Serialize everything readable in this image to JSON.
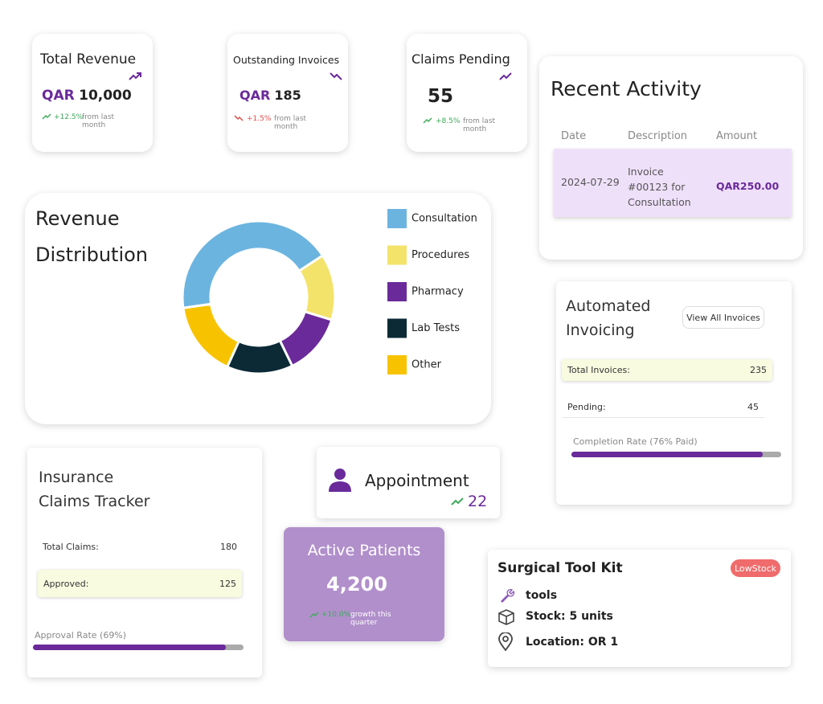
{
  "total_revenue": {
    "title": "Total Revenue",
    "currency": "QAR",
    "amount": "10,000",
    "change": "+12.5%",
    "change_note": "from last month"
  },
  "outstanding_invoices": {
    "title": "Outstanding Invoices",
    "currency": "QAR",
    "amount": "185",
    "change": "+1.5%",
    "change_note": "from last month"
  },
  "claims_pending": {
    "title": "Claims Pending",
    "value": "55",
    "change": "+8.5%",
    "change_note": "from last month"
  },
  "recent_activity": {
    "title": "Recent Activity",
    "columns": [
      "Date",
      "Description",
      "Amount"
    ],
    "rows": [
      [
        "2024-07-29",
        "Invoice #00123 for Consultation",
        "QAR250.00"
      ]
    ]
  },
  "chart_data": {
    "type": "donut",
    "title": "Revenue Distribution",
    "categories": [
      "Consultation",
      "Procedures",
      "Pharmacy",
      "Lab Tests",
      "Other"
    ],
    "values": [
      43,
      14,
      13,
      14,
      16
    ],
    "colors": [
      "#6cb4e0",
      "#f3e36b",
      "#6a2a9a",
      "#0b2a36",
      "#f7c300"
    ]
  },
  "automated_invoicing": {
    "title": "Automated Invoicing",
    "button": "View All Invoices",
    "rows": [
      [
        "Total Invoices:",
        "235"
      ],
      [
        "Pending:",
        "45"
      ]
    ],
    "progress_label": "Completion Rate (76% Paid)"
  },
  "insurance_claims": {
    "title": "Insurance Claims Tracker",
    "rows": [
      [
        "Total Claims:",
        "180"
      ],
      [
        "Approved:",
        "125"
      ]
    ],
    "progress_label": "Approval Rate (69%)"
  },
  "appointment": {
    "title": "Appointment",
    "value": "22"
  },
  "active_patients": {
    "title": "Active Patients",
    "value": "4,200",
    "change": "+10.0%",
    "change_note": "growth this quarter"
  },
  "surgical_tool_kit": {
    "title": "Surgical Tool Kit",
    "badge": "LowStock",
    "details": [
      "tools",
      "Stock: 5 units",
      "Location: OR 1"
    ]
  }
}
